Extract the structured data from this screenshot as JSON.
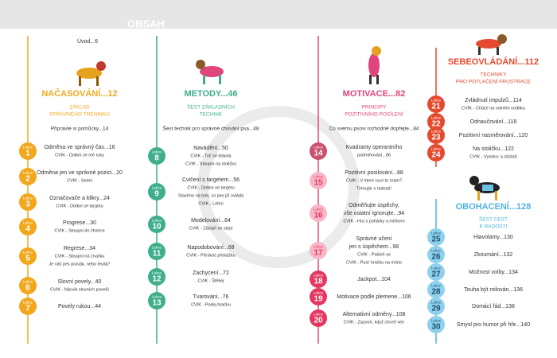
{
  "header": {
    "title": "OBSAH"
  },
  "intro": "Úvod...6",
  "sections": [
    {
      "title": "NAČASOVÁNÍ...12",
      "subtitle": [
        "ZÁKLAD",
        "SPRÁVNÉHO TRÉNINKU"
      ],
      "intro": "Připravte si pomůcky...14",
      "lessons": [
        {
          "label": "Lekce",
          "number": 1,
          "lines": [
            "Odměna ve správný čas...16",
            "CVIK - Dotkni se mé ruky"
          ]
        },
        {
          "label": "Lekce",
          "number": 2,
          "lines": [
            "Odměna jen ve správné pozici...20",
            "CVIK - Sedni"
          ]
        },
        {
          "label": "Lekce",
          "number": 3,
          "lines": [
            "Označovače a klikry...24",
            "CVIK - Dotkni se targetu"
          ]
        },
        {
          "label": "Lekce",
          "number": 4,
          "lines": [
            "Progrese...30",
            "CVIK - Stoupni do čtverce"
          ]
        },
        {
          "label": "Lekce",
          "number": 5,
          "lines": [
            "Regrese...34",
            "CVIK - Stoupni na značku",
            "Je váš pes pravák, nebo levák?"
          ]
        },
        {
          "label": "Lekce",
          "number": 6,
          "lines": [
            "Slovní povely...40",
            "CVIK - Nácvik slovních povelů"
          ]
        },
        {
          "label": "Lekce",
          "number": 7,
          "lines": [
            "Povely rukou...44"
          ]
        }
      ]
    },
    {
      "title": "METODY...46",
      "subtitle": [
        "ŠEST ZÁKLADNÍCH",
        "TECHNIK"
      ],
      "intro": "Šest technik pro správné chování psa...48",
      "lessons": [
        {
          "label": "Lekce",
          "number": 8,
          "lines": [
            "Navádění...50",
            "CVIK - Toč se dokola",
            "CVIK - Stoupni na stoličku"
          ]
        },
        {
          "label": "Lekce",
          "number": 9,
          "lines": [
            "Cvičení s targetem...56",
            "CVIK - Dotkni se targetu",
            "Stavíme na tom, co pes již ovládá",
            "CVIK - Lehni"
          ]
        },
        {
          "label": "Lekce",
          "number": 10,
          "lines": [
            "Modelování...64",
            "CVIK - Zůstaň ve stoje"
          ]
        },
        {
          "label": "Lekce",
          "number": 11,
          "lines": [
            "Napodobování...68",
            "CVIK - Přeskoč překážku"
          ]
        },
        {
          "label": "Lekce",
          "number": 12,
          "lines": [
            "Zachycení...72",
            "CVIK - Štěkej"
          ]
        },
        {
          "label": "Lekce",
          "number": 13,
          "lines": [
            "Tvarování...76",
            "CVIK - Podej hračku"
          ]
        }
      ]
    },
    {
      "title": "MOTIVACE...82",
      "subtitle": [
        "PRINCIPY",
        "POZITIVNÍHO POSÍLENÍ"
      ],
      "intro": "Co svému psovi rozhodně dopřejte...84",
      "lessons": [
        {
          "label": "Lekce",
          "number": 14,
          "lines": [
            "Kvadranty operantního",
            "podmiňování...86"
          ]
        },
        {
          "label": "Lekce",
          "number": 15,
          "lines": [
            "Pozitivní posilování...88",
            "CVIK - V které ruce to mám?",
            "Trénujte s radostí!"
          ]
        },
        {
          "label": "Lekce",
          "number": 16,
          "lines": [
            "Odměňujte úspěchy,",
            "vše ostatní ignorujte...94",
            "CVIK - Hra s pohárky a míčkem"
          ]
        },
        {
          "label": "Lekce",
          "number": 17,
          "lines": [
            "Správné učení",
            "jen s úspěchem...98",
            "CVIK - Pokloň se",
            "CVIK - Pusť hračku na místo"
          ]
        },
        {
          "label": "Lekce",
          "number": 18,
          "lines": [
            "Jackpot...104"
          ]
        },
        {
          "label": "Lekce",
          "number": 19,
          "lines": [
            "Motivace podle plemene...106"
          ]
        },
        {
          "label": "Lekce",
          "number": 20,
          "lines": [
            "Alternativní odměny...108",
            "CVIK - Zazvoň, když chceš ven"
          ]
        }
      ]
    },
    {
      "title": "SEBEOVLÁDÁNÍ...112",
      "subtitle": [
        "TECHNIKY",
        "PRO POTLAČENÍ FRUSTRACE"
      ],
      "lessons": [
        {
          "label": "Lekce",
          "number": 21,
          "lines": [
            "Zvládnutí impulzů...114",
            "CVIK - Chůze na volném vodítku"
          ]
        },
        {
          "label": "Lekce",
          "number": 22,
          "lines": [
            "Odnaučování...118"
          ]
        },
        {
          "label": "Lekce",
          "number": 23,
          "lines": [
            "Pozitivní nasměrování...120"
          ]
        },
        {
          "label": "Lekce",
          "number": 24,
          "lines": [
            "Na stoličku...122",
            "CVIK - Vysoko: a zůstaň"
          ]
        }
      ]
    },
    {
      "title": "OBOHACENÍ...128",
      "subtitle": [
        "ŠEST CEST",
        "K RADOSTI"
      ],
      "lessons": [
        {
          "label": "Lekce",
          "number": 25,
          "lines": [
            "Hlavolamy...130"
          ]
        },
        {
          "label": "Lekce",
          "number": 26,
          "lines": [
            "Zkoumání...132"
          ]
        },
        {
          "label": "Lekce",
          "number": 27,
          "lines": [
            "Možnost volby...134"
          ]
        },
        {
          "label": "Lekce",
          "number": 28,
          "lines": [
            "Touha být milován...136"
          ]
        },
        {
          "label": "Lekce",
          "number": 29,
          "lines": [
            "Domácí řád...138"
          ]
        },
        {
          "label": "Lekce",
          "number": 30,
          "lines": [
            "Smysl pro humor při hře...140"
          ]
        }
      ]
    }
  ]
}
